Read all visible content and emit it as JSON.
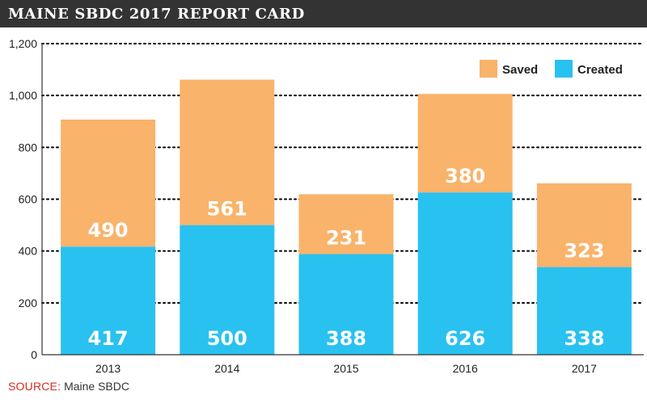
{
  "header": {
    "title": "MAINE SBDC 2017 REPORT CARD"
  },
  "source": {
    "label": "SOURCE:",
    "text": "Maine SBDC"
  },
  "colors": {
    "saved": "#F9B36B",
    "created": "#29C1F0",
    "header_bg": "#333333",
    "source_label": "#D52B1E",
    "grid": "#000000",
    "axis_text": "#222222",
    "data_label": "#ffffff"
  },
  "chart_data": {
    "type": "bar",
    "stacked": true,
    "title": "",
    "xlabel": "",
    "ylabel": "",
    "categories": [
      "2013",
      "2014",
      "2015",
      "2016",
      "2017"
    ],
    "series": [
      {
        "name": "Created",
        "values": [
          417,
          500,
          388,
          626,
          338
        ]
      },
      {
        "name": "Saved",
        "values": [
          490,
          561,
          231,
          380,
          323
        ]
      }
    ],
    "ylim": [
      0,
      1200
    ],
    "yticks": [
      0,
      200,
      400,
      600,
      800,
      1000,
      1200
    ],
    "ytick_labels": [
      "0",
      "200",
      "400",
      "600",
      "800",
      "1,000",
      "1,200"
    ],
    "grid": true,
    "grid_style": "dotted",
    "legend_position": "top-right",
    "legend_order": [
      "Saved",
      "Created"
    ]
  }
}
